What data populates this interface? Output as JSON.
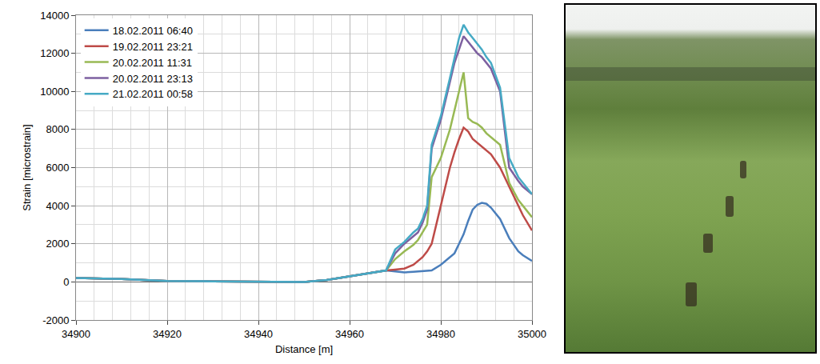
{
  "chart_data": {
    "type": "line",
    "x_label": "Distance [m]",
    "y_label": "Strain [microstrain]",
    "x": [
      34900,
      34905,
      34910,
      34915,
      34920,
      34930,
      34940,
      34945,
      34950,
      34955,
      34960,
      34965,
      34968,
      34970,
      34972,
      34974,
      34975,
      34976,
      34977,
      34978,
      34980,
      34982,
      34983,
      34984,
      34985,
      34986,
      34987,
      34988,
      34989,
      34990,
      34991,
      34993,
      34995,
      34997,
      34998,
      35000
    ],
    "series": [
      {
        "name": "18.02.2011 06:40",
        "color": "#4a7ebb",
        "values": [
          200,
          180,
          150,
          100,
          50,
          30,
          20,
          0,
          0,
          100,
          300,
          500,
          600,
          550,
          500,
          530,
          550,
          570,
          590,
          600,
          900,
          1300,
          1500,
          2000,
          2500,
          3200,
          3800,
          4050,
          4150,
          4100,
          3900,
          3300,
          2300,
          1600,
          1400,
          1100
        ]
      },
      {
        "name": "19.02.2011 23:21",
        "color": "#be4b48",
        "values": [
          200,
          180,
          150,
          100,
          50,
          30,
          20,
          0,
          0,
          100,
          300,
          500,
          600,
          650,
          700,
          900,
          1100,
          1300,
          1600,
          2000,
          4000,
          6000,
          6800,
          7500,
          8100,
          7900,
          7500,
          7300,
          7100,
          6900,
          6700,
          6000,
          5000,
          4000,
          3500,
          2700
        ]
      },
      {
        "name": "20.02.2011 11:31",
        "color": "#98b954",
        "values": [
          200,
          180,
          150,
          100,
          50,
          30,
          20,
          0,
          0,
          100,
          300,
          500,
          600,
          1200,
          1600,
          1950,
          2200,
          2600,
          3000,
          5500,
          6500,
          8000,
          9000,
          10000,
          11000,
          8600,
          8400,
          8300,
          8100,
          7800,
          7600,
          7200,
          5200,
          4300,
          4000,
          3400
        ]
      },
      {
        "name": "20.02.2011 23:13",
        "color": "#7d60a0",
        "values": [
          200,
          180,
          150,
          100,
          50,
          30,
          20,
          0,
          0,
          100,
          300,
          500,
          600,
          1500,
          2000,
          2400,
          2600,
          3100,
          3800,
          7000,
          8500,
          10500,
          11500,
          12200,
          12900,
          12600,
          12300,
          12000,
          11800,
          11500,
          11200,
          10000,
          6000,
          5300,
          5000,
          4600
        ]
      },
      {
        "name": "21.02.2011 00:58",
        "color": "#46aac5",
        "values": [
          200,
          180,
          150,
          100,
          50,
          30,
          20,
          0,
          0,
          100,
          300,
          500,
          600,
          1700,
          2100,
          2600,
          2800,
          3300,
          4000,
          7200,
          8700,
          10700,
          11800,
          12800,
          13500,
          13100,
          12800,
          12500,
          12200,
          11800,
          11500,
          10200,
          6500,
          5500,
          5200,
          4600
        ]
      }
    ],
    "xlim": [
      34900,
      35000
    ],
    "xticks": [
      34900,
      34920,
      34940,
      34960,
      34980,
      35000
    ],
    "ylim": [
      -2000,
      14000
    ],
    "yticks": [
      -2000,
      0,
      2000,
      4000,
      6000,
      8000,
      10000,
      12000,
      14000
    ],
    "grid": true,
    "legend": "top-left"
  }
}
